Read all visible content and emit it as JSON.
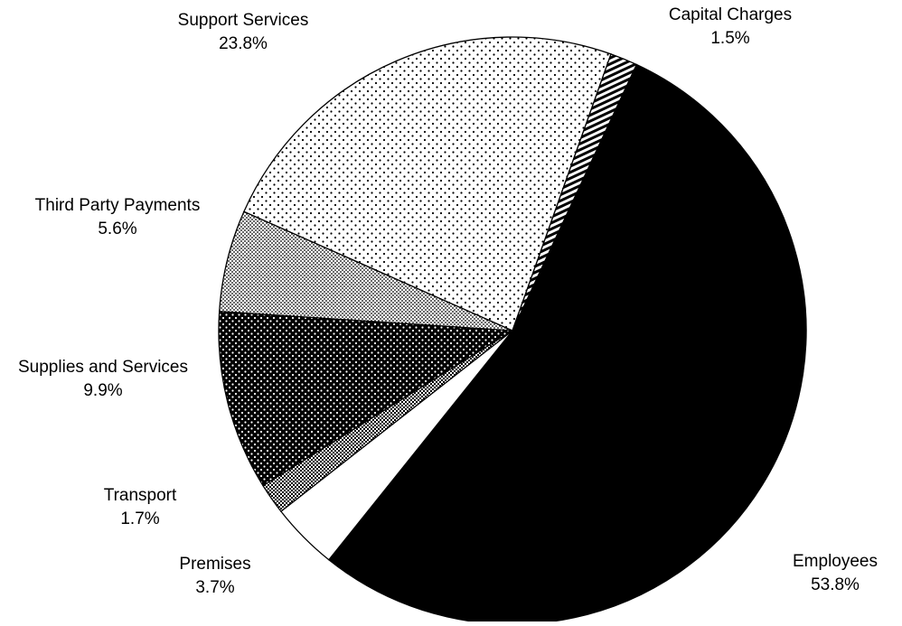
{
  "chart_data": {
    "type": "pie",
    "title": "",
    "start_angle_deg": 25,
    "direction": "clockwise",
    "slices": [
      {
        "name": "Employees",
        "percent_label": "53.8%",
        "value": 53.8,
        "pattern": "solid-black"
      },
      {
        "name": "Premises",
        "percent_label": "3.7%",
        "value": 3.7,
        "pattern": "white"
      },
      {
        "name": "Transport",
        "percent_label": "1.7%",
        "value": 1.7,
        "pattern": "fine-grid"
      },
      {
        "name": "Supplies and Services",
        "percent_label": "9.9%",
        "value": 9.9,
        "pattern": "dark-dots"
      },
      {
        "name": "Third Party Payments",
        "percent_label": "5.6%",
        "value": 5.6,
        "pattern": "medium-dots"
      },
      {
        "name": "Support Services",
        "percent_label": "23.8%",
        "value": 23.8,
        "pattern": "sparse-dots"
      },
      {
        "name": "Capital Charges",
        "percent_label": "1.5%",
        "value": 1.5,
        "pattern": "stripes"
      }
    ],
    "colors": {
      "stroke": "#000000",
      "dark": "#000000",
      "light": "#ffffff"
    }
  }
}
